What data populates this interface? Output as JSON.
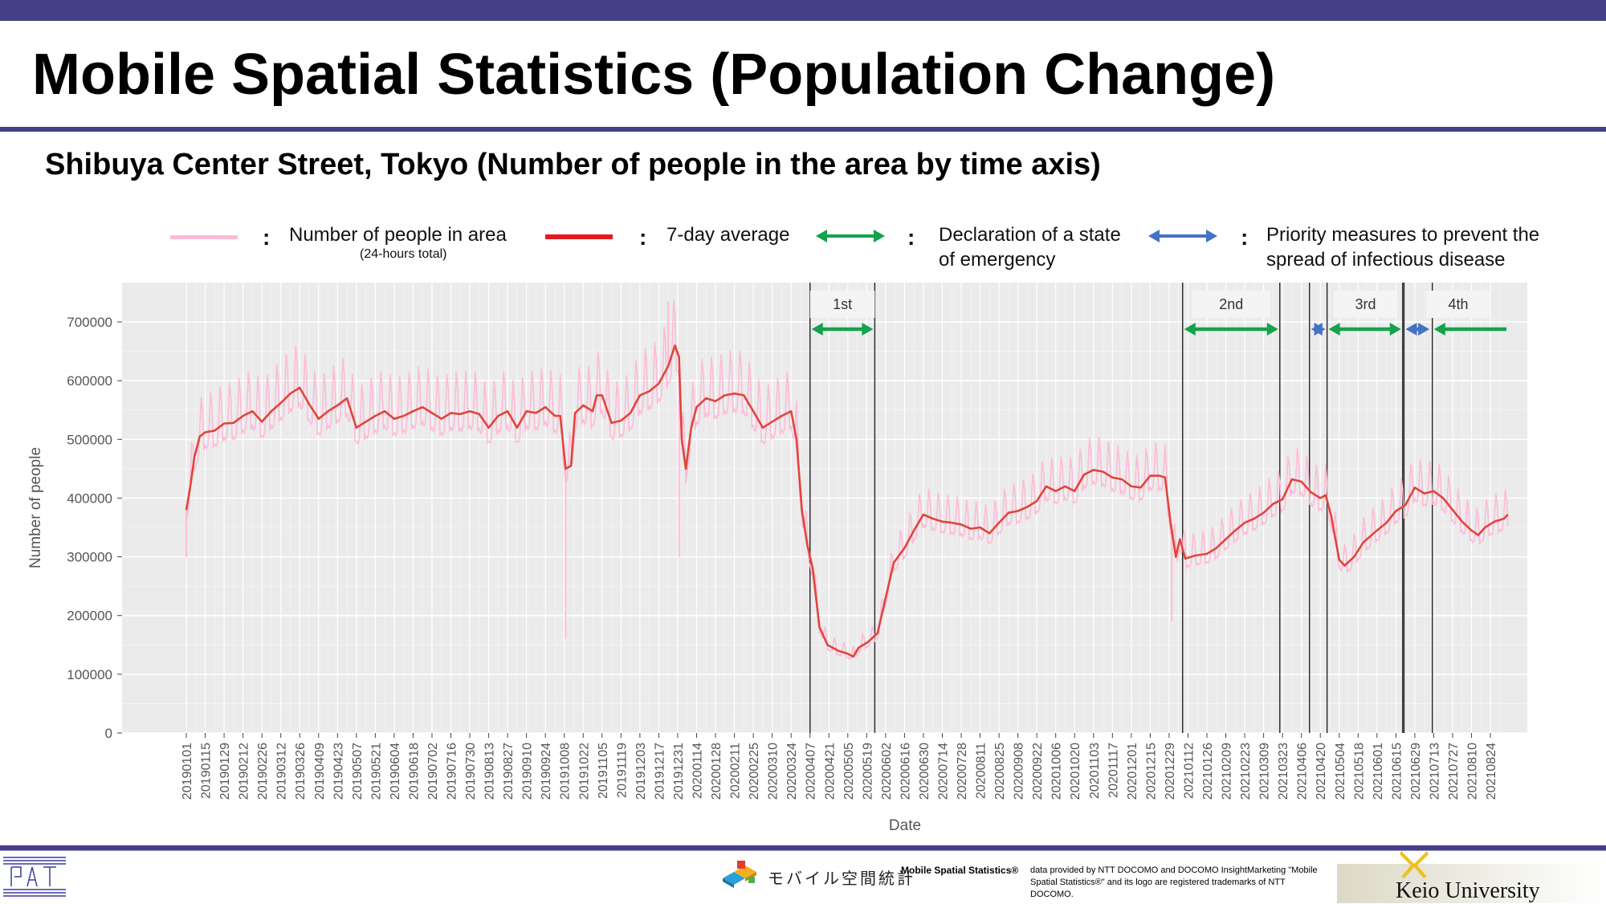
{
  "header": {
    "title": "Mobile Spatial Statistics (Population Change)",
    "subtitle": "Shibuya Center Street, Tokyo (Number of people in the area by time axis)"
  },
  "legend": {
    "daily": {
      "label": "Number of people in area",
      "sublabel": "(24-hours total)",
      "color": "#ffb8d6"
    },
    "avg": {
      "label": "7-day average",
      "color": "#e41a1c"
    },
    "emergency": {
      "label_line1": "Declaration of a state",
      "label_line2": "of emergency",
      "color": "#13a34a"
    },
    "priority": {
      "label_line1": "Priority measures to prevent the",
      "label_line2": "spread of infectious disease",
      "color": "#4472c4"
    },
    "colon": ":"
  },
  "chart_data": {
    "type": "line",
    "xlabel": "Date",
    "ylabel": "Number of people",
    "ylim": [
      0,
      750000
    ],
    "xlim": [
      "2019-01-01",
      "2021-09-12"
    ],
    "yticks": [
      "0",
      "100000",
      "200000",
      "300000",
      "400000",
      "500000",
      "600000",
      "700000"
    ],
    "ytick_values": [
      0,
      100000,
      200000,
      300000,
      400000,
      500000,
      600000,
      700000
    ],
    "xticks": [
      "20190101",
      "20190115",
      "20190129",
      "20190212",
      "20190226",
      "20190312",
      "20190326",
      "20190409",
      "20190423",
      "20190507",
      "20190521",
      "20190604",
      "20190618",
      "20190702",
      "20190716",
      "20190730",
      "20190813",
      "20190827",
      "20190910",
      "20190924",
      "20191008",
      "20191022",
      "20191105",
      "20191119",
      "20191203",
      "20191217",
      "20191231",
      "20200114",
      "20200128",
      "20200211",
      "20200225",
      "20200310",
      "20200324",
      "20200407",
      "20200421",
      "20200505",
      "20200519",
      "20200602",
      "20200616",
      "20200630",
      "20200714",
      "20200728",
      "20200811",
      "20200825",
      "20200908",
      "20200922",
      "20201006",
      "20201020",
      "20201103",
      "20201117",
      "20201201",
      "20201215",
      "20201229",
      "20210112",
      "20210126",
      "20210209",
      "20210223",
      "20210309",
      "20210323",
      "20210406",
      "20210420",
      "20210504",
      "20210518",
      "20210601",
      "20210615",
      "20210629",
      "20210713",
      "20210727",
      "20210810",
      "20210824"
    ],
    "grid": true,
    "series": [
      {
        "name": "7-day average",
        "color": "#e0453b",
        "points": [
          [
            "2019-01-01",
            380000
          ],
          [
            "2019-01-04",
            420000
          ],
          [
            "2019-01-07",
            470000
          ],
          [
            "2019-01-11",
            505000
          ],
          [
            "2019-01-15",
            512000
          ],
          [
            "2019-01-22",
            515000
          ],
          [
            "2019-01-29",
            527000
          ],
          [
            "2019-02-05",
            528000
          ],
          [
            "2019-02-12",
            540000
          ],
          [
            "2019-02-19",
            548000
          ],
          [
            "2019-02-26",
            530000
          ],
          [
            "2019-03-05",
            548000
          ],
          [
            "2019-03-12",
            562000
          ],
          [
            "2019-03-19",
            578000
          ],
          [
            "2019-03-26",
            588000
          ],
          [
            "2019-04-02",
            560000
          ],
          [
            "2019-04-09",
            535000
          ],
          [
            "2019-04-16",
            548000
          ],
          [
            "2019-04-23",
            558000
          ],
          [
            "2019-04-30",
            570000
          ],
          [
            "2019-05-07",
            520000
          ],
          [
            "2019-05-14",
            530000
          ],
          [
            "2019-05-21",
            540000
          ],
          [
            "2019-05-28",
            548000
          ],
          [
            "2019-06-04",
            535000
          ],
          [
            "2019-06-11",
            540000
          ],
          [
            "2019-06-18",
            548000
          ],
          [
            "2019-06-25",
            555000
          ],
          [
            "2019-07-02",
            545000
          ],
          [
            "2019-07-09",
            535000
          ],
          [
            "2019-07-16",
            545000
          ],
          [
            "2019-07-23",
            543000
          ],
          [
            "2019-07-30",
            548000
          ],
          [
            "2019-08-06",
            543000
          ],
          [
            "2019-08-13",
            520000
          ],
          [
            "2019-08-20",
            540000
          ],
          [
            "2019-08-27",
            548000
          ],
          [
            "2019-09-03",
            520000
          ],
          [
            "2019-09-10",
            548000
          ],
          [
            "2019-09-17",
            545000
          ],
          [
            "2019-09-24",
            555000
          ],
          [
            "2019-10-01",
            540000
          ],
          [
            "2019-10-05",
            540000
          ],
          [
            "2019-10-09",
            450000
          ],
          [
            "2019-10-13",
            455000
          ],
          [
            "2019-10-16",
            545000
          ],
          [
            "2019-10-22",
            558000
          ],
          [
            "2019-10-29",
            548000
          ],
          [
            "2019-11-01",
            575000
          ],
          [
            "2019-11-05",
            575000
          ],
          [
            "2019-11-12",
            528000
          ],
          [
            "2019-11-19",
            532000
          ],
          [
            "2019-11-26",
            545000
          ],
          [
            "2019-12-03",
            575000
          ],
          [
            "2019-12-10",
            582000
          ],
          [
            "2019-12-17",
            595000
          ],
          [
            "2019-12-24",
            625000
          ],
          [
            "2019-12-29",
            660000
          ],
          [
            "2020-01-01",
            640000
          ],
          [
            "2020-01-03",
            500000
          ],
          [
            "2020-01-06",
            450000
          ],
          [
            "2020-01-10",
            520000
          ],
          [
            "2020-01-14",
            555000
          ],
          [
            "2020-01-21",
            570000
          ],
          [
            "2020-01-28",
            565000
          ],
          [
            "2020-02-04",
            575000
          ],
          [
            "2020-02-11",
            578000
          ],
          [
            "2020-02-18",
            575000
          ],
          [
            "2020-02-25",
            548000
          ],
          [
            "2020-03-03",
            520000
          ],
          [
            "2020-03-10",
            530000
          ],
          [
            "2020-03-17",
            540000
          ],
          [
            "2020-03-24",
            548000
          ],
          [
            "2020-03-28",
            500000
          ],
          [
            "2020-04-01",
            380000
          ],
          [
            "2020-04-05",
            320000
          ],
          [
            "2020-04-09",
            280000
          ],
          [
            "2020-04-14",
            180000
          ],
          [
            "2020-04-20",
            150000
          ],
          [
            "2020-04-28",
            140000
          ],
          [
            "2020-05-05",
            135000
          ],
          [
            "2020-05-09",
            130000
          ],
          [
            "2020-05-13",
            145000
          ],
          [
            "2020-05-20",
            155000
          ],
          [
            "2020-05-27",
            170000
          ],
          [
            "2020-06-02",
            230000
          ],
          [
            "2020-06-08",
            290000
          ],
          [
            "2020-06-16",
            315000
          ],
          [
            "2020-06-23",
            345000
          ],
          [
            "2020-06-30",
            372000
          ],
          [
            "2020-07-07",
            365000
          ],
          [
            "2020-07-14",
            360000
          ],
          [
            "2020-07-21",
            358000
          ],
          [
            "2020-07-28",
            355000
          ],
          [
            "2020-08-04",
            348000
          ],
          [
            "2020-08-11",
            350000
          ],
          [
            "2020-08-18",
            340000
          ],
          [
            "2020-08-25",
            358000
          ],
          [
            "2020-09-01",
            375000
          ],
          [
            "2020-09-08",
            378000
          ],
          [
            "2020-09-15",
            385000
          ],
          [
            "2020-09-22",
            395000
          ],
          [
            "2020-09-29",
            420000
          ],
          [
            "2020-10-06",
            412000
          ],
          [
            "2020-10-13",
            420000
          ],
          [
            "2020-10-20",
            412000
          ],
          [
            "2020-10-27",
            440000
          ],
          [
            "2020-11-03",
            448000
          ],
          [
            "2020-11-10",
            445000
          ],
          [
            "2020-11-17",
            435000
          ],
          [
            "2020-11-24",
            432000
          ],
          [
            "2020-12-01",
            420000
          ],
          [
            "2020-12-08",
            418000
          ],
          [
            "2020-12-15",
            438000
          ],
          [
            "2020-12-22",
            438000
          ],
          [
            "2020-12-26",
            435000
          ],
          [
            "2020-12-30",
            360000
          ],
          [
            "2021-01-03",
            300000
          ],
          [
            "2021-01-06",
            330000
          ],
          [
            "2021-01-10",
            297000
          ],
          [
            "2021-01-17",
            302000
          ],
          [
            "2021-01-26",
            305000
          ],
          [
            "2021-02-02",
            315000
          ],
          [
            "2021-02-09",
            330000
          ],
          [
            "2021-02-16",
            345000
          ],
          [
            "2021-02-23",
            358000
          ],
          [
            "2021-03-02",
            365000
          ],
          [
            "2021-03-09",
            375000
          ],
          [
            "2021-03-16",
            390000
          ],
          [
            "2021-03-23",
            398000
          ],
          [
            "2021-03-30",
            432000
          ],
          [
            "2021-04-06",
            428000
          ],
          [
            "2021-04-13",
            410000
          ],
          [
            "2021-04-20",
            400000
          ],
          [
            "2021-04-24",
            405000
          ],
          [
            "2021-04-28",
            370000
          ],
          [
            "2021-05-04",
            295000
          ],
          [
            "2021-05-08",
            285000
          ],
          [
            "2021-05-15",
            300000
          ],
          [
            "2021-05-22",
            325000
          ],
          [
            "2021-06-01",
            345000
          ],
          [
            "2021-06-08",
            358000
          ],
          [
            "2021-06-15",
            378000
          ],
          [
            "2021-06-22",
            388000
          ],
          [
            "2021-06-29",
            418000
          ],
          [
            "2021-07-06",
            408000
          ],
          [
            "2021-07-13",
            412000
          ],
          [
            "2021-07-20",
            400000
          ],
          [
            "2021-07-27",
            380000
          ],
          [
            "2021-08-03",
            360000
          ],
          [
            "2021-08-10",
            345000
          ],
          [
            "2021-08-15",
            337000
          ],
          [
            "2021-08-20",
            350000
          ],
          [
            "2021-08-27",
            360000
          ],
          [
            "2021-09-03",
            365000
          ],
          [
            "2021-09-06",
            372000
          ]
        ]
      },
      {
        "name": "Number of people in area",
        "color": "#ffb8d6",
        "note_points": [
          [
            "2019-01-01",
            300000
          ],
          [
            "2019-10-09",
            160000
          ],
          [
            "2020-01-01",
            300000
          ],
          [
            "2019-12-24",
            735000
          ],
          [
            "2020-12-31",
            190000
          ]
        ]
      }
    ],
    "periods": [
      {
        "label": "1st",
        "type": "emergency",
        "start": "2020-04-07",
        "end": "2020-05-25",
        "label_box": [
          "2020-04-07",
          "2020-05-25"
        ]
      },
      {
        "label": "2nd",
        "type": "emergency",
        "start": "2021-01-08",
        "end": "2021-03-21",
        "label_box": [
          "2021-01-15",
          "2021-03-14"
        ]
      },
      {
        "label": "",
        "type": "priority",
        "start": "2021-04-12",
        "end": "2021-04-25"
      },
      {
        "label": "3rd",
        "type": "emergency",
        "start": "2021-04-25",
        "end": "2021-06-20",
        "label_box": [
          "2021-04-30",
          "2021-06-16"
        ]
      },
      {
        "label": "",
        "type": "priority",
        "start": "2021-06-21",
        "end": "2021-07-11"
      },
      {
        "label": "4th",
        "type": "emergency",
        "start": "2021-07-12",
        "end": "2021-09-12",
        "label_box": [
          "2021-07-25",
          "2021-09-05"
        ]
      }
    ]
  },
  "footer": {
    "brand_name": "モバイル空間統計",
    "credit_title": "Mobile Spatial Statistics®",
    "credit_body": "data provided by NTT DOCOMO and DOCOMO InsightMarketing \"Mobile Spatial Statistics®\" and its logo are registered trademarks of NTT DOCOMO.",
    "university": "Keio University"
  }
}
